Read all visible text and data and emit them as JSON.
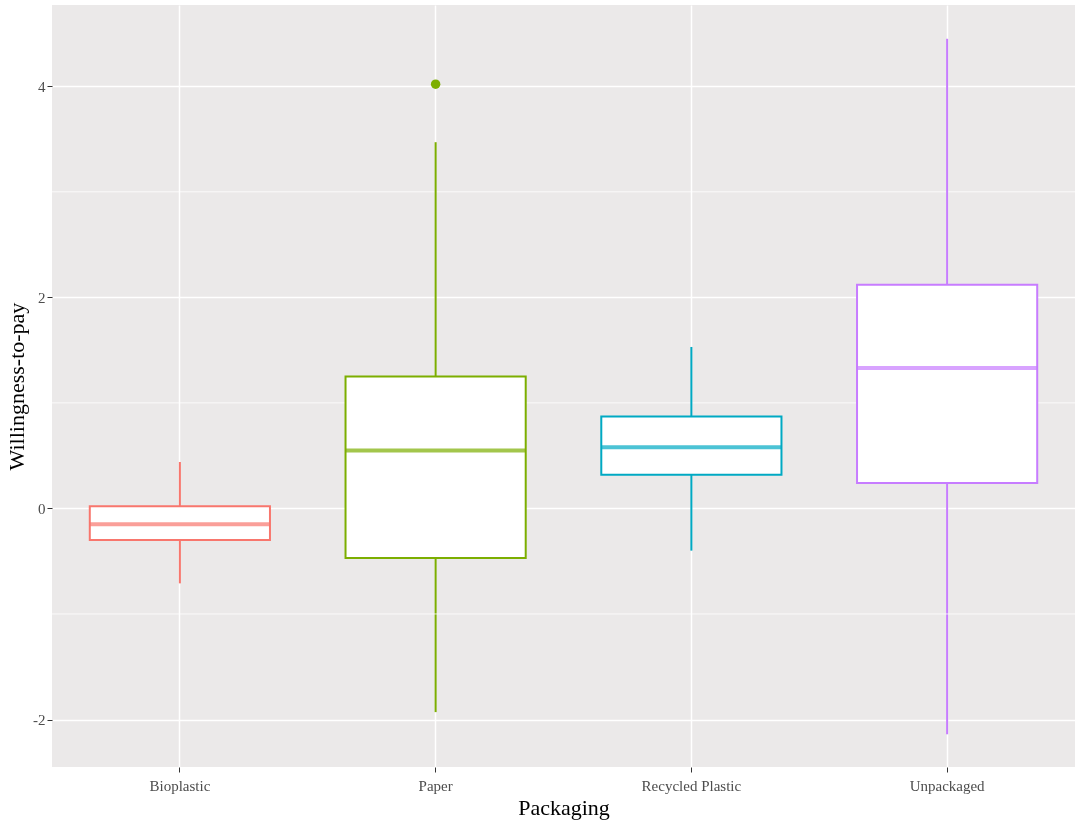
{
  "chart_data": {
    "type": "box",
    "xlabel": "Packaging",
    "ylabel": "Willingness-to-pay",
    "categories": [
      "Bioplastic",
      "Paper",
      "Recycled Plastic",
      "Unpackaged"
    ],
    "colors": [
      "#f8766d",
      "#7cae00",
      "#00a9c3",
      "#c77cff"
    ],
    "boxes": [
      {
        "low": -0.71,
        "q1": -0.3,
        "median": -0.15,
        "q3": 0.02,
        "high": 0.44
      },
      {
        "low": -1.93,
        "q1": -0.47,
        "median": 0.55,
        "q3": 1.25,
        "high": 3.47,
        "outliers": [
          4.02
        ]
      },
      {
        "low": -0.4,
        "q1": 0.32,
        "median": 0.58,
        "q3": 0.87,
        "high": 1.53
      },
      {
        "low": -2.14,
        "q1": 0.24,
        "median": 1.33,
        "q3": 2.12,
        "high": 4.45
      }
    ],
    "ylim": [
      -2.45,
      4.77
    ],
    "yticks": [
      -2,
      0,
      2,
      4
    ],
    "grid": true
  }
}
